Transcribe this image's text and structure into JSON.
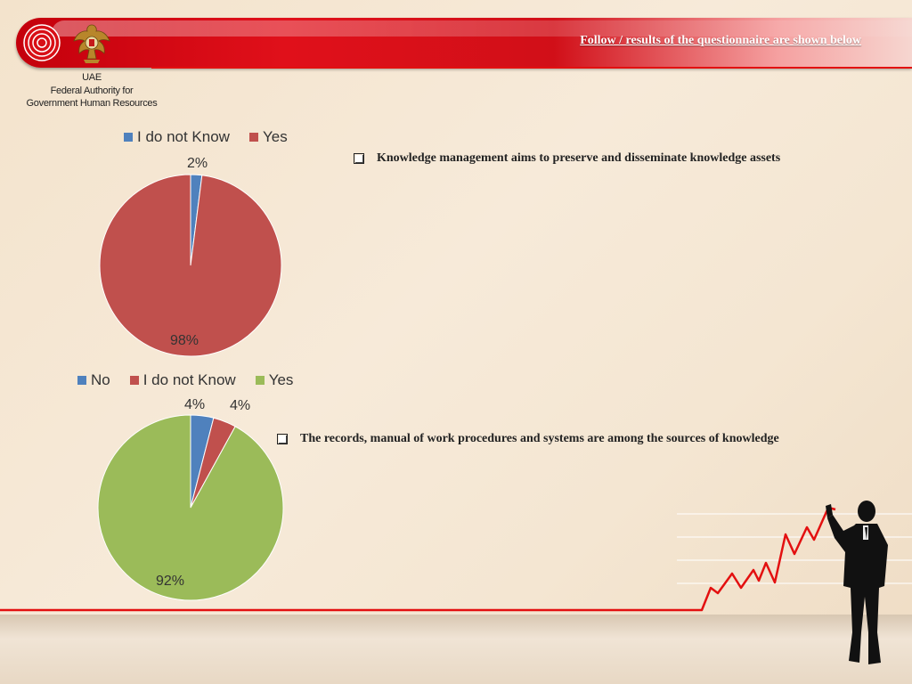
{
  "header": {
    "title": "Follow / results of the questionnaire are shown below"
  },
  "org": {
    "line1": "UAE",
    "line2": "Federal Authority for",
    "line3": "Government Human Resources"
  },
  "colors": {
    "blue": "#4f81bd",
    "red": "#c0504d",
    "green": "#9bbb59",
    "accent": "#e31010"
  },
  "chart_data": [
    {
      "type": "pie",
      "categories": [
        "I do not Know",
        "Yes"
      ],
      "values": [
        2,
        98
      ],
      "labels": [
        "2%",
        "98%"
      ],
      "colors": [
        "#4f81bd",
        "#c0504d"
      ],
      "legend": "top"
    },
    {
      "type": "pie",
      "categories": [
        "No",
        "I do not Know",
        "Yes"
      ],
      "values": [
        4,
        4,
        92
      ],
      "labels": [
        "4%",
        "4%",
        "92%"
      ],
      "colors": [
        "#4f81bd",
        "#c0504d",
        "#9bbb59"
      ],
      "legend": "top"
    }
  ],
  "statements": [
    "Knowledge management aims to preserve and disseminate knowledge assets",
    "The records, manual of work procedures and systems are among the sources of knowledge"
  ]
}
